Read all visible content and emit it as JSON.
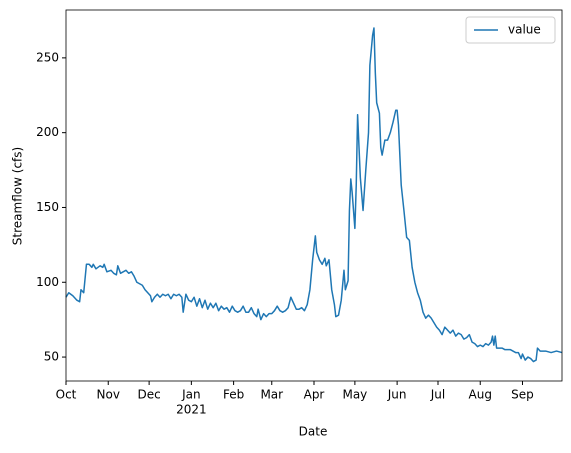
{
  "chart_data": {
    "type": "line",
    "xlabel": "Date",
    "ylabel": "Streamflow (cfs)",
    "year_label": "2021",
    "x": [
      0,
      2,
      5,
      8,
      10,
      11,
      13,
      15,
      17,
      19,
      20,
      22,
      25,
      27,
      28,
      30,
      33,
      35,
      37,
      38,
      40,
      42,
      44,
      46,
      48,
      50,
      52,
      54,
      56,
      58,
      60,
      62,
      63,
      65,
      67,
      69,
      71,
      73,
      75,
      77,
      79,
      81,
      83,
      85,
      86,
      88,
      90,
      92,
      94,
      96,
      98,
      100,
      102,
      104,
      106,
      108,
      110,
      112,
      114,
      116,
      118,
      120,
      122,
      124,
      126,
      128,
      130,
      132,
      134,
      136,
      138,
      140,
      141,
      143,
      145,
      147,
      149,
      151,
      153,
      155,
      157,
      159,
      161,
      163,
      165,
      167,
      169,
      171,
      173,
      175,
      177,
      179,
      181,
      183,
      184,
      186,
      188,
      190,
      191,
      193,
      195,
      197,
      198,
      200,
      202,
      204,
      205,
      207,
      208,
      209,
      210,
      212,
      213,
      214,
      216,
      218,
      220,
      222,
      223,
      225,
      226,
      227,
      228,
      230,
      231,
      232,
      234,
      236,
      238,
      240,
      242,
      243,
      244,
      246,
      248,
      250,
      252,
      254,
      256,
      258,
      260,
      262,
      264,
      266,
      268,
      270,
      272,
      274,
      276,
      278,
      280,
      282,
      284,
      286,
      288,
      290,
      292,
      294,
      296,
      298,
      300,
      302,
      304,
      306,
      308,
      310,
      312,
      313,
      314,
      315,
      316,
      318,
      320,
      322,
      326,
      328,
      330,
      332,
      334,
      335,
      337,
      339,
      341,
      343,
      345,
      346,
      348,
      352,
      356,
      360,
      364
    ],
    "series": [
      {
        "name": "value",
        "color": "#1f77b4",
        "values": [
          90,
          93,
          91,
          88,
          87,
          95,
          93,
          112,
          112,
          110,
          112,
          109,
          111,
          110,
          112,
          107,
          108,
          106,
          105,
          111,
          106,
          107,
          108,
          106,
          107,
          104,
          100,
          99,
          98,
          95,
          93,
          91,
          87,
          90,
          92,
          90,
          92,
          91,
          92,
          89,
          92,
          91,
          92,
          90,
          80,
          92,
          88,
          87,
          90,
          84,
          89,
          83,
          88,
          82,
          86,
          83,
          86,
          81,
          84,
          82,
          83,
          80,
          84,
          81,
          80,
          81,
          84,
          80,
          80,
          83,
          79,
          77,
          82,
          75,
          79,
          77,
          79,
          79,
          81,
          84,
          81,
          80,
          81,
          83,
          90,
          86,
          82,
          82,
          83,
          81,
          85,
          95,
          115,
          131,
          120,
          115,
          112,
          116,
          111,
          115,
          95,
          85,
          77,
          78,
          88,
          108,
          95,
          101,
          148,
          169,
          160,
          136,
          165,
          212,
          170,
          148,
          175,
          200,
          245,
          265,
          270,
          240,
          220,
          213,
          190,
          185,
          195,
          195,
          200,
          207,
          215,
          215,
          205,
          165,
          148,
          130,
          128,
          110,
          100,
          93,
          88,
          80,
          76,
          78,
          76,
          73,
          70,
          68,
          65,
          70,
          68,
          66,
          68,
          64,
          66,
          65,
          62,
          63,
          65,
          60,
          59,
          57,
          58,
          57,
          59,
          58,
          60,
          64,
          58,
          64,
          56,
          56,
          56,
          55,
          55,
          54,
          53,
          53,
          49,
          52,
          48,
          50,
          49,
          47,
          48,
          56,
          54,
          54,
          53,
          54,
          53
        ]
      }
    ],
    "xlim": [
      0,
      364
    ],
    "xticks": [
      {
        "value": 0,
        "label": "Oct"
      },
      {
        "value": 31,
        "label": "Nov"
      },
      {
        "value": 61,
        "label": "Dec"
      },
      {
        "value": 92,
        "label": "Jan"
      },
      {
        "value": 123,
        "label": "Feb"
      },
      {
        "value": 151,
        "label": "Mar"
      },
      {
        "value": 182,
        "label": "Apr"
      },
      {
        "value": 212,
        "label": "May"
      },
      {
        "value": 243,
        "label": "Jun"
      },
      {
        "value": 273,
        "label": "Jul"
      },
      {
        "value": 304,
        "label": "Aug"
      },
      {
        "value": 335,
        "label": "Sep"
      }
    ],
    "ylim": [
      34,
      282
    ],
    "yticks": [
      50,
      100,
      150,
      200,
      250
    ],
    "legend": "upper right"
  }
}
